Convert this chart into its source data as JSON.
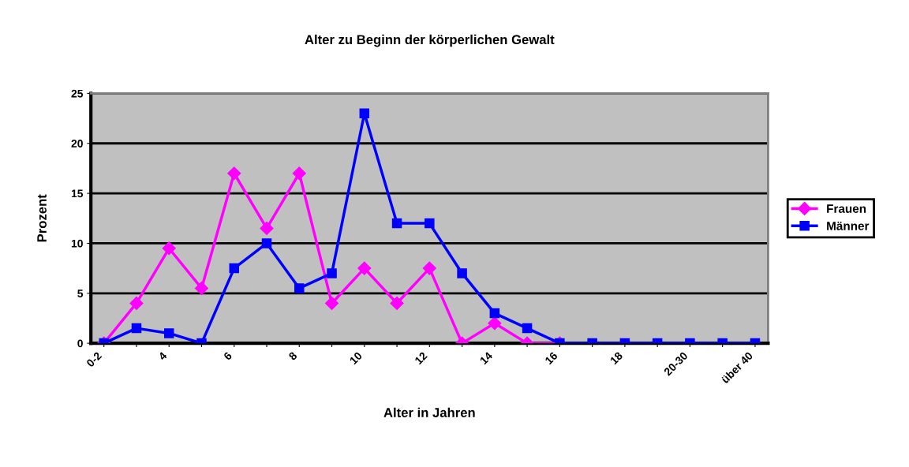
{
  "chart_data": {
    "type": "line",
    "title": "Alter zu Beginn der körperlichen Gewalt",
    "xlabel": "Alter in Jahren",
    "ylabel": "Prozent",
    "categories": [
      "0-2",
      null,
      "4",
      null,
      "6",
      null,
      "8",
      null,
      "10",
      null,
      "12",
      null,
      "14",
      null,
      "16",
      null,
      "18",
      null,
      "20-30",
      null,
      "über 40"
    ],
    "series": [
      {
        "name": "Frauen",
        "color": "#ff00ff",
        "marker": "diamond",
        "values": [
          0,
          4,
          9.5,
          5.5,
          17,
          11.5,
          17,
          4,
          7.5,
          4,
          7.5,
          0,
          2,
          0,
          0,
          null,
          null,
          null,
          null,
          null,
          null
        ]
      },
      {
        "name": "Männer",
        "color": "#0000ff",
        "marker": "square",
        "values": [
          0,
          1.5,
          1,
          0,
          7.5,
          10,
          5.5,
          7,
          23,
          12,
          12,
          7,
          3,
          1.5,
          0,
          0,
          0,
          0,
          0,
          0,
          0
        ]
      }
    ],
    "ylim": [
      0,
      25
    ],
    "yticks": [
      0,
      5,
      10,
      15,
      20,
      25
    ],
    "grid": "y",
    "legend": "right"
  }
}
